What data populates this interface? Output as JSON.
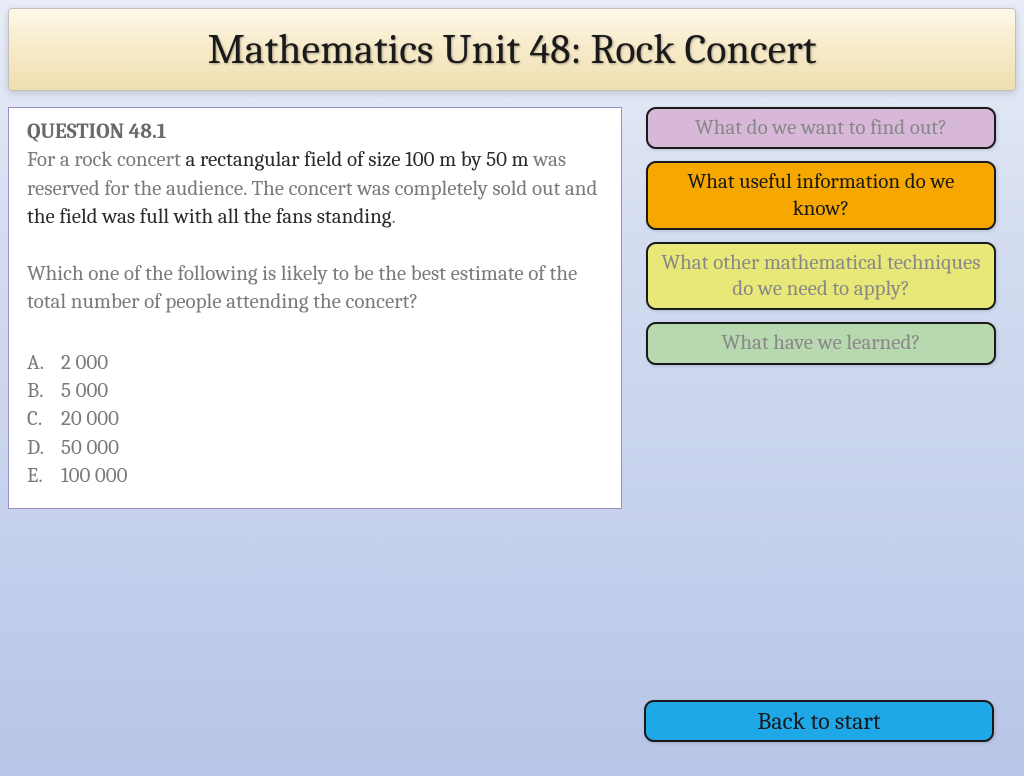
{
  "header": {
    "title": "Mathematics Unit 48: Rock Concert"
  },
  "question": {
    "title": "QUESTION 48.1",
    "p1_a": "For a rock concert ",
    "p1_b": "a rectangular field of size 100 m by 50 m",
    "p1_c": " was reserved for the audience.  The concert was completely sold out and ",
    "p1_d": "the field was full with all the fans standing",
    "p1_e": ".",
    "p2": "Which one of the following is likely to be the best estimate of the total number of people attending the concert?",
    "options": [
      {
        "letter": "A.",
        "text": "2 000"
      },
      {
        "letter": "B.",
        "text": "5 000"
      },
      {
        "letter": "C.",
        "text": "20 000"
      },
      {
        "letter": "D.",
        "text": "50 000"
      },
      {
        "letter": "E.",
        "text": "100 000"
      }
    ]
  },
  "buttons": {
    "find_out": "What do we want to find out?",
    "useful_info": "What useful information do we know?",
    "techniques": "What other mathematical techniques do we need to apply?",
    "learned": "What have we learned?",
    "back": "Back to start"
  },
  "style": {
    "colors": {
      "purple": "#d8b8d8",
      "orange": "#f7a800",
      "yellow": "#e8e878",
      "green": "#b8d8b0",
      "blue": "#1fa8e8",
      "border": "#1a1a1a",
      "muted_text": "#888888",
      "dark_text": "#1a1a1a",
      "panel_border": "#9a8fc0"
    },
    "header_gradient": [
      "#fdf8e8",
      "#efe0b0"
    ],
    "body_gradient": [
      "#e8edf7",
      "#b8c5e8"
    ],
    "font_family": "Cambria, Georgia, serif",
    "title_fontsize": 42,
    "body_fontsize": 21,
    "button_radius": 10
  }
}
